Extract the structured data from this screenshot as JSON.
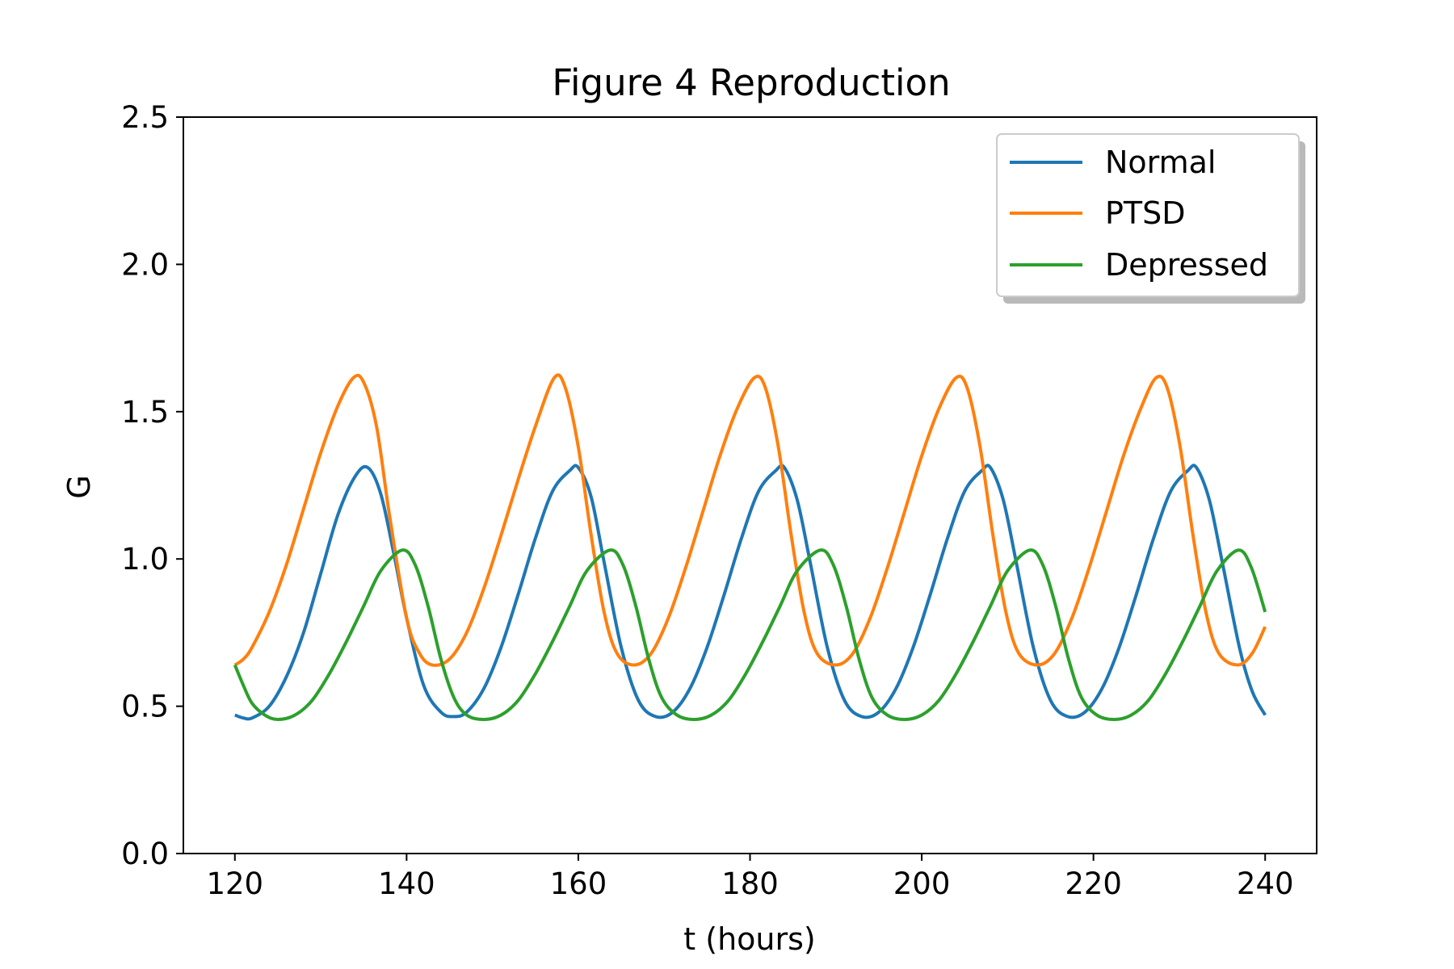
{
  "chart_data": {
    "type": "line",
    "title": "Figure 4 Reproduction",
    "xlabel": "t (hours)",
    "ylabel": "G",
    "xlim": [
      114,
      246
    ],
    "ylim": [
      0.0,
      2.5
    ],
    "xticks": [
      120,
      140,
      160,
      180,
      200,
      220,
      240
    ],
    "xtick_labels": [
      "120",
      "140",
      "160",
      "180",
      "200",
      "220",
      "240"
    ],
    "yticks": [
      0.0,
      0.5,
      1.0,
      1.5,
      2.0,
      2.5
    ],
    "ytick_labels": [
      "0.0",
      "0.5",
      "1.0",
      "1.5",
      "2.0",
      "2.5"
    ],
    "grid": false,
    "legend_position": "top-right",
    "series": [
      {
        "name": "Normal",
        "color": "#1f77b4",
        "x": [
          120,
          121,
          122,
          124,
          126,
          128,
          130,
          132,
          134,
          135.5,
          137,
          138.5,
          140,
          142,
          144,
          145.5,
          147,
          149,
          151,
          153,
          155,
          157,
          159,
          160,
          161.5,
          163,
          165,
          167,
          169,
          171,
          173,
          175,
          177,
          179,
          181,
          183,
          184,
          185.5,
          187,
          189,
          191,
          193,
          195,
          197,
          199,
          201,
          203,
          205,
          207,
          208,
          209.5,
          211,
          213,
          215,
          217,
          219,
          221,
          223,
          225,
          227,
          229,
          231,
          232,
          233.5,
          235,
          237,
          238.5,
          240
        ],
        "y": [
          0.47,
          0.46,
          0.46,
          0.5,
          0.6,
          0.75,
          0.95,
          1.15,
          1.28,
          1.31,
          1.22,
          1.02,
          0.8,
          0.57,
          0.48,
          0.465,
          0.48,
          0.56,
          0.7,
          0.88,
          1.07,
          1.23,
          1.3,
          1.31,
          1.21,
          0.99,
          0.7,
          0.52,
          0.465,
          0.48,
          0.56,
          0.7,
          0.88,
          1.07,
          1.23,
          1.3,
          1.31,
          1.2,
          0.99,
          0.7,
          0.52,
          0.465,
          0.48,
          0.56,
          0.7,
          0.88,
          1.07,
          1.23,
          1.3,
          1.31,
          1.2,
          0.99,
          0.7,
          0.52,
          0.465,
          0.48,
          0.56,
          0.7,
          0.88,
          1.07,
          1.23,
          1.3,
          1.31,
          1.2,
          0.99,
          0.7,
          0.55,
          0.47
        ]
      },
      {
        "name": "PTSD",
        "color": "#ff7f0e",
        "x": [
          120,
          121,
          122,
          124,
          126,
          128,
          130,
          132,
          133.8,
          135,
          136.5,
          138,
          140,
          141.5,
          143,
          145,
          147,
          149,
          151,
          153,
          155,
          157.2,
          158.5,
          160,
          161.5,
          163,
          164.5,
          166.5,
          168.5,
          170.5,
          172.5,
          174.5,
          176.5,
          178.5,
          180.5,
          181.8,
          183.3,
          184.8,
          186.3,
          187.8,
          190,
          192,
          194,
          196,
          198,
          200,
          202,
          204,
          205.3,
          206.8,
          208.3,
          209.8,
          211.3,
          213.5,
          215.5,
          217.5,
          219.5,
          221.5,
          223.5,
          225.5,
          227.3,
          228.6,
          230.1,
          231.6,
          233.1,
          234.6,
          236.8,
          238.5,
          240
        ],
        "y": [
          0.64,
          0.66,
          0.7,
          0.82,
          0.98,
          1.17,
          1.36,
          1.52,
          1.615,
          1.6,
          1.45,
          1.15,
          0.8,
          0.68,
          0.64,
          0.66,
          0.75,
          0.9,
          1.08,
          1.27,
          1.45,
          1.615,
          1.58,
          1.38,
          1.08,
          0.82,
          0.68,
          0.64,
          0.68,
          0.8,
          0.97,
          1.16,
          1.35,
          1.51,
          1.615,
          1.58,
          1.38,
          1.08,
          0.82,
          0.68,
          0.64,
          0.68,
          0.8,
          0.97,
          1.16,
          1.35,
          1.51,
          1.615,
          1.58,
          1.38,
          1.08,
          0.82,
          0.68,
          0.64,
          0.68,
          0.8,
          0.97,
          1.16,
          1.35,
          1.51,
          1.615,
          1.58,
          1.38,
          1.08,
          0.82,
          0.68,
          0.64,
          0.68,
          0.77
        ]
      },
      {
        "name": "Depressed",
        "color": "#2ca02c",
        "x": [
          120,
          121,
          122,
          123.5,
          125,
          127,
          129,
          131,
          133,
          135,
          137,
          139.5,
          141,
          142.5,
          144,
          145.5,
          147,
          149,
          151,
          153,
          155,
          157,
          159,
          161,
          163.7,
          165.2,
          166.7,
          168.2,
          169.7,
          171.5,
          173.5,
          175.5,
          177.5,
          179.5,
          181.5,
          183.5,
          185.5,
          188.2,
          189.7,
          191.2,
          192.7,
          194.2,
          196,
          198,
          200,
          202,
          204,
          206,
          208,
          210,
          212.6,
          214.1,
          215.6,
          217.1,
          218.6,
          220.4,
          222.4,
          224.4,
          226.4,
          228.4,
          230.4,
          232.4,
          234.4,
          236.9,
          238.4,
          240
        ],
        "y": [
          0.64,
          0.57,
          0.51,
          0.47,
          0.455,
          0.47,
          0.52,
          0.61,
          0.72,
          0.84,
          0.96,
          1.03,
          0.98,
          0.84,
          0.66,
          0.53,
          0.47,
          0.455,
          0.47,
          0.52,
          0.61,
          0.72,
          0.84,
          0.96,
          1.03,
          0.98,
          0.84,
          0.66,
          0.53,
          0.47,
          0.455,
          0.47,
          0.52,
          0.61,
          0.72,
          0.84,
          0.96,
          1.03,
          0.98,
          0.84,
          0.66,
          0.53,
          0.47,
          0.455,
          0.47,
          0.52,
          0.61,
          0.72,
          0.84,
          0.96,
          1.03,
          0.98,
          0.84,
          0.66,
          0.53,
          0.47,
          0.455,
          0.47,
          0.52,
          0.61,
          0.72,
          0.84,
          0.96,
          1.03,
          0.97,
          0.82
        ]
      }
    ]
  }
}
